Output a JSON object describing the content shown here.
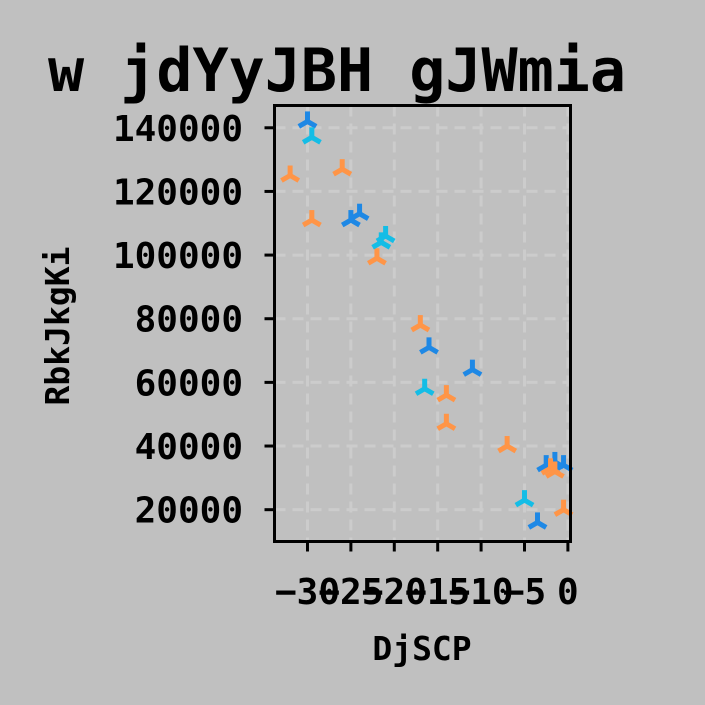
{
  "chart_data": {
    "type": "scatter",
    "title": "w jdYyJBH  gJWmia",
    "xlabel": "DjSCP",
    "ylabel": "RbkJkgKi",
    "xlim": [
      -33.8,
      0.3
    ],
    "ylim": [
      10000,
      147000
    ],
    "xticks": [
      {
        "value": -30,
        "label": "−30"
      },
      {
        "value": -25,
        "label": "−25"
      },
      {
        "value": -20,
        "label": "−20"
      },
      {
        "value": -15,
        "label": "−15"
      },
      {
        "value": -10,
        "label": "−10"
      },
      {
        "value": -5,
        "label": "−5"
      },
      {
        "value": 0,
        "label": "0"
      }
    ],
    "yticks": [
      {
        "value": 20000,
        "label": "20000"
      },
      {
        "value": 40000,
        "label": "40000"
      },
      {
        "value": 60000,
        "label": "60000"
      },
      {
        "value": 80000,
        "label": "80000"
      },
      {
        "value": 100000,
        "label": "100000"
      },
      {
        "value": 120000,
        "label": "120000"
      },
      {
        "value": 140000,
        "label": "140000"
      }
    ],
    "grid": true,
    "marker": "tri-down",
    "series": [
      {
        "color": "#1e88e5",
        "points": [
          {
            "x": -30,
            "y": 142000
          },
          {
            "x": -24,
            "y": 113000
          },
          {
            "x": -25,
            "y": 111000
          },
          {
            "x": -16,
            "y": 71000
          },
          {
            "x": -11,
            "y": 64000
          },
          {
            "x": -1.5,
            "y": 35000
          },
          {
            "x": -2.5,
            "y": 34000
          },
          {
            "x": -0.5,
            "y": 34000
          },
          {
            "x": -3.5,
            "y": 16000
          }
        ]
      },
      {
        "color": "#ff9547",
        "points": [
          {
            "x": -32,
            "y": 125000
          },
          {
            "x": -26,
            "y": 127000
          },
          {
            "x": -29.5,
            "y": 111000
          },
          {
            "x": -22,
            "y": 99000
          },
          {
            "x": -17,
            "y": 78000
          },
          {
            "x": -14,
            "y": 56000
          },
          {
            "x": -14,
            "y": 47000
          },
          {
            "x": -7,
            "y": 40000
          },
          {
            "x": -2,
            "y": 33000
          },
          {
            "x": -1.5,
            "y": 32000
          },
          {
            "x": -0.5,
            "y": 20000
          }
        ]
      },
      {
        "color": "#14bde6",
        "points": [
          {
            "x": -29.5,
            "y": 137000
          },
          {
            "x": -21,
            "y": 106000
          },
          {
            "x": -21.5,
            "y": 104000
          },
          {
            "x": -16.5,
            "y": 58000
          },
          {
            "x": -5,
            "y": 23000
          }
        ]
      }
    ]
  }
}
